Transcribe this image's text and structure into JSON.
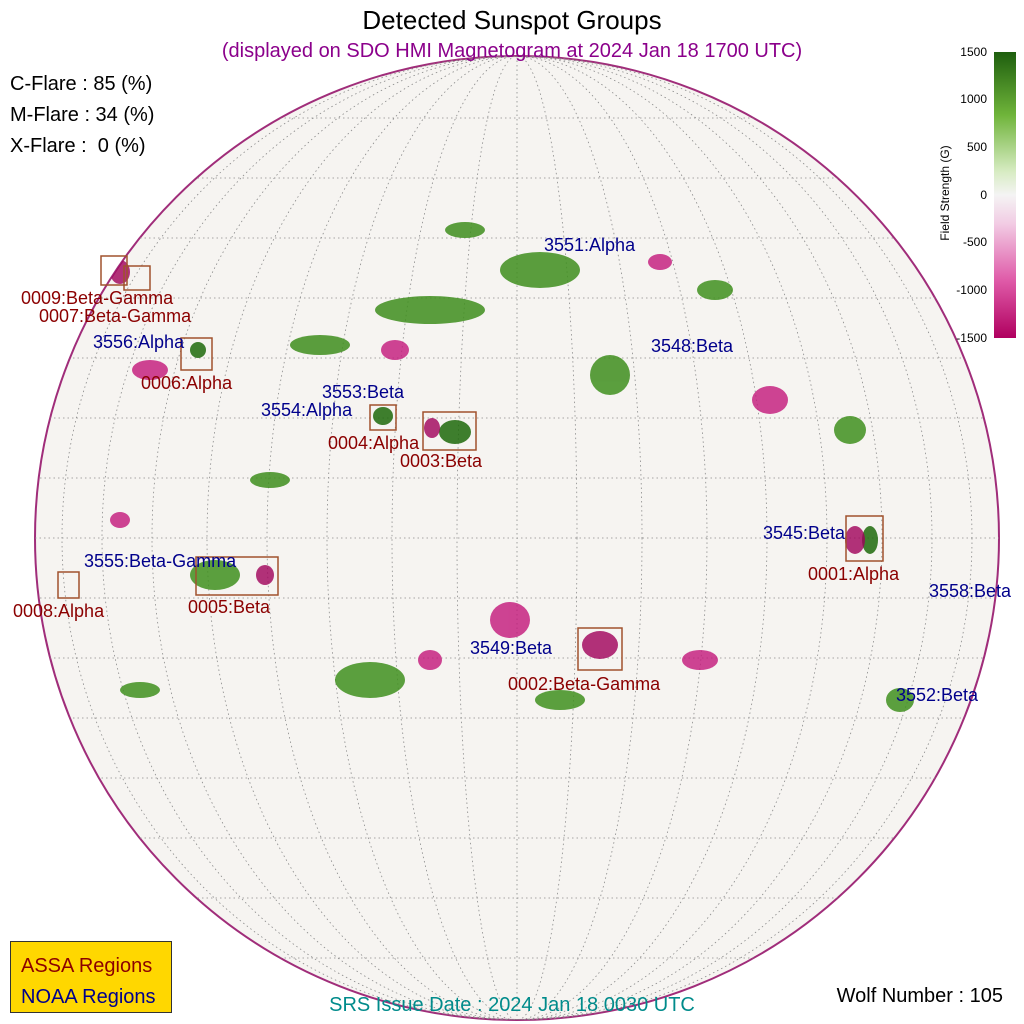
{
  "title": "Detected Sunspot Groups",
  "subtitle": "(displayed on SDO HMI Magnetogram at 2024 Jan 18 1700 UTC)",
  "flare_probabilities": [
    {
      "label": "C-Flare : 85 (%)"
    },
    {
      "label": "M-Flare : 34 (%)"
    },
    {
      "label": "X-Flare :  0 (%)"
    }
  ],
  "colorbar": {
    "title": "Field Strength (G)",
    "ticks": [
      "1500",
      "1000",
      "500",
      "0",
      "-500",
      "-1000",
      "-1500"
    ],
    "colors": {
      "positive": "#2e7d12",
      "zero": "#f4f4f4",
      "negative": "#b0005f"
    }
  },
  "assa_regions": [
    {
      "label": "0009:Beta-Gamma"
    },
    {
      "label": "0007:Beta-Gamma"
    },
    {
      "label": "0006:Alpha"
    },
    {
      "label": "0004:Alpha"
    },
    {
      "label": "0003:Beta"
    },
    {
      "label": "0005:Beta"
    },
    {
      "label": "0008:Alpha"
    },
    {
      "label": "0002:Beta-Gamma"
    },
    {
      "label": "0001:Alpha"
    }
  ],
  "noaa_regions": [
    {
      "label": "3551:Alpha"
    },
    {
      "label": "3548:Beta"
    },
    {
      "label": "3556:Alpha"
    },
    {
      "label": "3553:Beta"
    },
    {
      "label": "3554:Alpha"
    },
    {
      "label": "3545:Beta"
    },
    {
      "label": "3558:Beta"
    },
    {
      "label": "3555:Beta-Gamma"
    },
    {
      "label": "3549:Beta"
    },
    {
      "label": "3552:Beta"
    }
  ],
  "legend": {
    "assa": "ASSA Regions",
    "noaa": "NOAA Regions"
  },
  "srs_issue": "SRS Issue Date : 2024 Jan 18 0030 UTC",
  "wolf_number": "Wolf Number : 105"
}
